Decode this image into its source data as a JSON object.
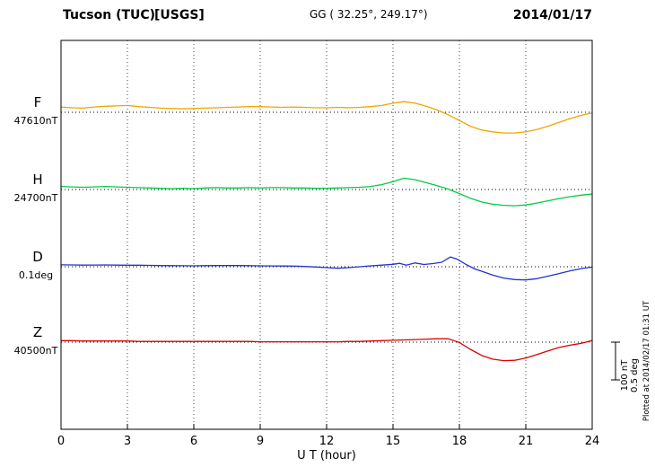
{
  "header": {
    "station": "Tucson (TUC)",
    "agency": "[USGS]",
    "coords": "GG ( 32.25°, 249.17°)",
    "date": "2014/01/17"
  },
  "footer": {
    "xlabel": "U T (hour)",
    "plotted_at": "Plotted at 2014/02/17 01:31 UT"
  },
  "scalebar": {
    "nt_label": "100 nT",
    "deg_label": "0.5 deg"
  },
  "chart_data": {
    "type": "line",
    "title": "Tucson (TUC) [USGS] magnetogram 2014/01/17",
    "xlabel": "U T (hour)",
    "xlim": [
      0,
      24
    ],
    "xticks": [
      0,
      3,
      6,
      9,
      12,
      15,
      18,
      21,
      24
    ],
    "grid": "dotted-vertical",
    "scale": {
      "nT_per_bar": 100,
      "deg_per_bar": 0.5
    },
    "series": [
      {
        "name": "F",
        "unit_label": "47610nT",
        "baseline": 47610,
        "unit": "nT",
        "color": "#f0a500",
        "points": [
          [
            0,
            14
          ],
          [
            0.5,
            12
          ],
          [
            1,
            11
          ],
          [
            1.5,
            14
          ],
          [
            2,
            16
          ],
          [
            2.5,
            17
          ],
          [
            3,
            18
          ],
          [
            3.5,
            15
          ],
          [
            4,
            13
          ],
          [
            4.5,
            11
          ],
          [
            5,
            10
          ],
          [
            5.5,
            9
          ],
          [
            6,
            10
          ],
          [
            6.5,
            11
          ],
          [
            7,
            12
          ],
          [
            7.5,
            13
          ],
          [
            8,
            14
          ],
          [
            8.5,
            15
          ],
          [
            9,
            15
          ],
          [
            9.5,
            14
          ],
          [
            10,
            13
          ],
          [
            10.5,
            14
          ],
          [
            11,
            13
          ],
          [
            11.5,
            12
          ],
          [
            12,
            12
          ],
          [
            12.5,
            13
          ],
          [
            13,
            12
          ],
          [
            13.5,
            13
          ],
          [
            14,
            15
          ],
          [
            14.5,
            18
          ],
          [
            15,
            24
          ],
          [
            15.5,
            28
          ],
          [
            16,
            24
          ],
          [
            16.5,
            16
          ],
          [
            17,
            6
          ],
          [
            17.5,
            -7
          ],
          [
            18,
            -22
          ],
          [
            18.5,
            -37
          ],
          [
            19,
            -47
          ],
          [
            19.5,
            -52
          ],
          [
            20,
            -55
          ],
          [
            20.5,
            -55
          ],
          [
            21,
            -52
          ],
          [
            21.5,
            -46
          ],
          [
            22,
            -37
          ],
          [
            22.5,
            -27
          ],
          [
            23,
            -17
          ],
          [
            23.5,
            -8
          ],
          [
            24,
            -2
          ]
        ]
      },
      {
        "name": "H",
        "unit_label": "24700nT",
        "baseline": 24700,
        "unit": "nT",
        "color": "#00cc44",
        "points": [
          [
            0,
            8
          ],
          [
            0.5,
            7
          ],
          [
            1,
            6
          ],
          [
            1.5,
            7
          ],
          [
            2,
            8
          ],
          [
            2.5,
            7
          ],
          [
            3,
            6
          ],
          [
            3.5,
            5
          ],
          [
            4,
            4
          ],
          [
            4.5,
            3
          ],
          [
            5,
            2
          ],
          [
            5.5,
            3
          ],
          [
            6,
            2
          ],
          [
            6.5,
            4
          ],
          [
            7,
            5
          ],
          [
            7.5,
            4
          ],
          [
            8,
            4
          ],
          [
            8.5,
            5
          ],
          [
            9,
            4
          ],
          [
            9.5,
            5
          ],
          [
            10,
            5
          ],
          [
            10.5,
            4
          ],
          [
            11,
            4
          ],
          [
            11.5,
            3
          ],
          [
            12,
            3
          ],
          [
            12.5,
            4
          ],
          [
            13,
            5
          ],
          [
            13.5,
            6
          ],
          [
            14,
            8
          ],
          [
            14.5,
            13
          ],
          [
            15,
            21
          ],
          [
            15.5,
            30
          ],
          [
            16,
            26
          ],
          [
            16.5,
            18
          ],
          [
            17,
            10
          ],
          [
            17.5,
            1
          ],
          [
            18,
            -11
          ],
          [
            18.5,
            -23
          ],
          [
            19,
            -33
          ],
          [
            19.5,
            -39
          ],
          [
            20,
            -42
          ],
          [
            20.5,
            -43
          ],
          [
            21,
            -41
          ],
          [
            21.5,
            -36
          ],
          [
            22,
            -30
          ],
          [
            22.5,
            -24
          ],
          [
            23,
            -19
          ],
          [
            23.5,
            -15
          ],
          [
            24,
            -12
          ]
        ]
      },
      {
        "name": "D",
        "unit_label": "0.1deg",
        "baseline": 0.1,
        "unit": "deg",
        "color": "#2233cc",
        "points": [
          [
            0,
            0.025
          ],
          [
            0.5,
            0.024
          ],
          [
            1,
            0.022
          ],
          [
            1.5,
            0.023
          ],
          [
            2,
            0.024
          ],
          [
            2.5,
            0.022
          ],
          [
            3,
            0.02
          ],
          [
            3.5,
            0.02
          ],
          [
            4,
            0.018
          ],
          [
            4.5,
            0.016
          ],
          [
            5,
            0.014
          ],
          [
            5.5,
            0.013
          ],
          [
            6,
            0.012
          ],
          [
            6.5,
            0.014
          ],
          [
            7,
            0.016
          ],
          [
            7.5,
            0.015
          ],
          [
            8,
            0.016
          ],
          [
            8.5,
            0.014
          ],
          [
            9,
            0.012
          ],
          [
            9.5,
            0.011
          ],
          [
            10,
            0.01
          ],
          [
            10.5,
            0.008
          ],
          [
            11,
            0.004
          ],
          [
            11.5,
            -0.004
          ],
          [
            12,
            -0.012
          ],
          [
            12.5,
            -0.02
          ],
          [
            13,
            -0.012
          ],
          [
            13.5,
            0.0
          ],
          [
            14,
            0.012
          ],
          [
            14.5,
            0.022
          ],
          [
            15,
            0.032
          ],
          [
            15.3,
            0.045
          ],
          [
            15.6,
            0.022
          ],
          [
            16,
            0.05
          ],
          [
            16.4,
            0.03
          ],
          [
            16.8,
            0.042
          ],
          [
            17.2,
            0.06
          ],
          [
            17.6,
            0.13
          ],
          [
            17.9,
            0.1
          ],
          [
            18.3,
            0.03
          ],
          [
            18.7,
            -0.03
          ],
          [
            19,
            -0.06
          ],
          [
            19.5,
            -0.11
          ],
          [
            20,
            -0.15
          ],
          [
            20.5,
            -0.17
          ],
          [
            21,
            -0.175
          ],
          [
            21.5,
            -0.158
          ],
          [
            22,
            -0.125
          ],
          [
            22.5,
            -0.09
          ],
          [
            23,
            -0.055
          ],
          [
            23.5,
            -0.025
          ],
          [
            24,
            -0.005
          ]
        ]
      },
      {
        "name": "Z",
        "unit_label": "40500nT",
        "baseline": 40500,
        "unit": "nT",
        "color": "#dd0000",
        "points": [
          [
            0,
            4
          ],
          [
            0.5,
            4
          ],
          [
            1,
            3
          ],
          [
            1.5,
            3
          ],
          [
            2,
            3
          ],
          [
            2.5,
            3
          ],
          [
            3,
            3
          ],
          [
            3.5,
            2
          ],
          [
            4,
            2
          ],
          [
            4.5,
            2
          ],
          [
            5,
            2
          ],
          [
            5.5,
            2
          ],
          [
            6,
            2
          ],
          [
            6.5,
            2
          ],
          [
            7,
            2
          ],
          [
            7.5,
            2
          ],
          [
            8,
            2
          ],
          [
            8.5,
            2
          ],
          [
            9,
            1
          ],
          [
            9.5,
            1
          ],
          [
            10,
            1
          ],
          [
            10.5,
            1
          ],
          [
            11,
            1
          ],
          [
            11.5,
            1
          ],
          [
            12,
            1
          ],
          [
            12.5,
            1
          ],
          [
            13,
            2
          ],
          [
            13.5,
            2
          ],
          [
            14,
            3
          ],
          [
            14.5,
            4
          ],
          [
            15,
            5
          ],
          [
            15.5,
            6
          ],
          [
            16,
            7
          ],
          [
            16.5,
            8
          ],
          [
            17,
            9
          ],
          [
            17.5,
            9
          ],
          [
            18,
            -1
          ],
          [
            18.5,
            -19
          ],
          [
            19,
            -35
          ],
          [
            19.5,
            -45
          ],
          [
            20,
            -49
          ],
          [
            20.5,
            -48
          ],
          [
            21,
            -42
          ],
          [
            21.5,
            -33
          ],
          [
            22,
            -23
          ],
          [
            22.5,
            -14
          ],
          [
            23,
            -8
          ],
          [
            23.5,
            -3
          ],
          [
            24,
            4
          ]
        ]
      }
    ]
  }
}
